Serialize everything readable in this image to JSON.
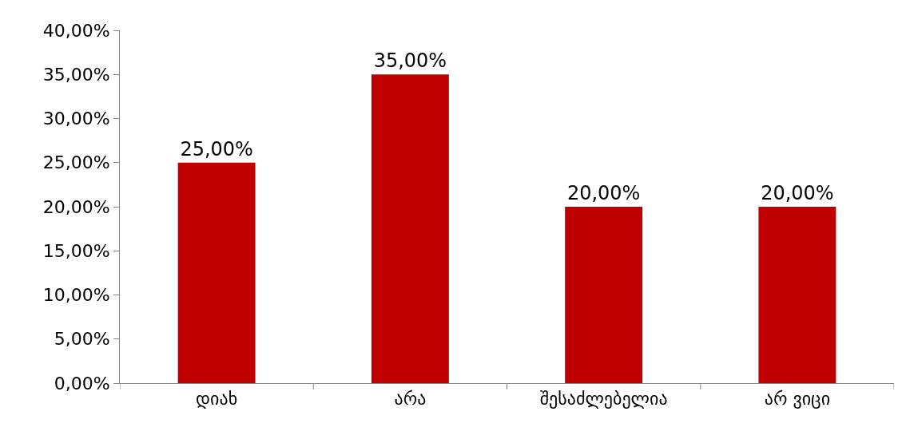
{
  "chart_data": {
    "type": "bar",
    "categories": [
      "დიახ",
      "არა",
      "შესაძლებელია",
      "არ ვიცი"
    ],
    "values": [
      25,
      35,
      20,
      20
    ],
    "color": "#c00000",
    "value_labels": [
      "25,00%",
      "35,00%",
      "20,00%",
      "20,00%"
    ],
    "ylim": [
      0,
      40
    ],
    "yticks": [
      {
        "value": 0,
        "label": "0,00%"
      },
      {
        "value": 5,
        "label": "5,00%"
      },
      {
        "value": 10,
        "label": "10,00%"
      },
      {
        "value": 15,
        "label": "15,00%"
      },
      {
        "value": 20,
        "label": "20,00%"
      },
      {
        "value": 25,
        "label": "25,00%"
      },
      {
        "value": 30,
        "label": "30,00%"
      },
      {
        "value": 35,
        "label": "35,00%"
      },
      {
        "value": 40,
        "label": "40,00%"
      }
    ],
    "grid": false,
    "legend": false
  }
}
